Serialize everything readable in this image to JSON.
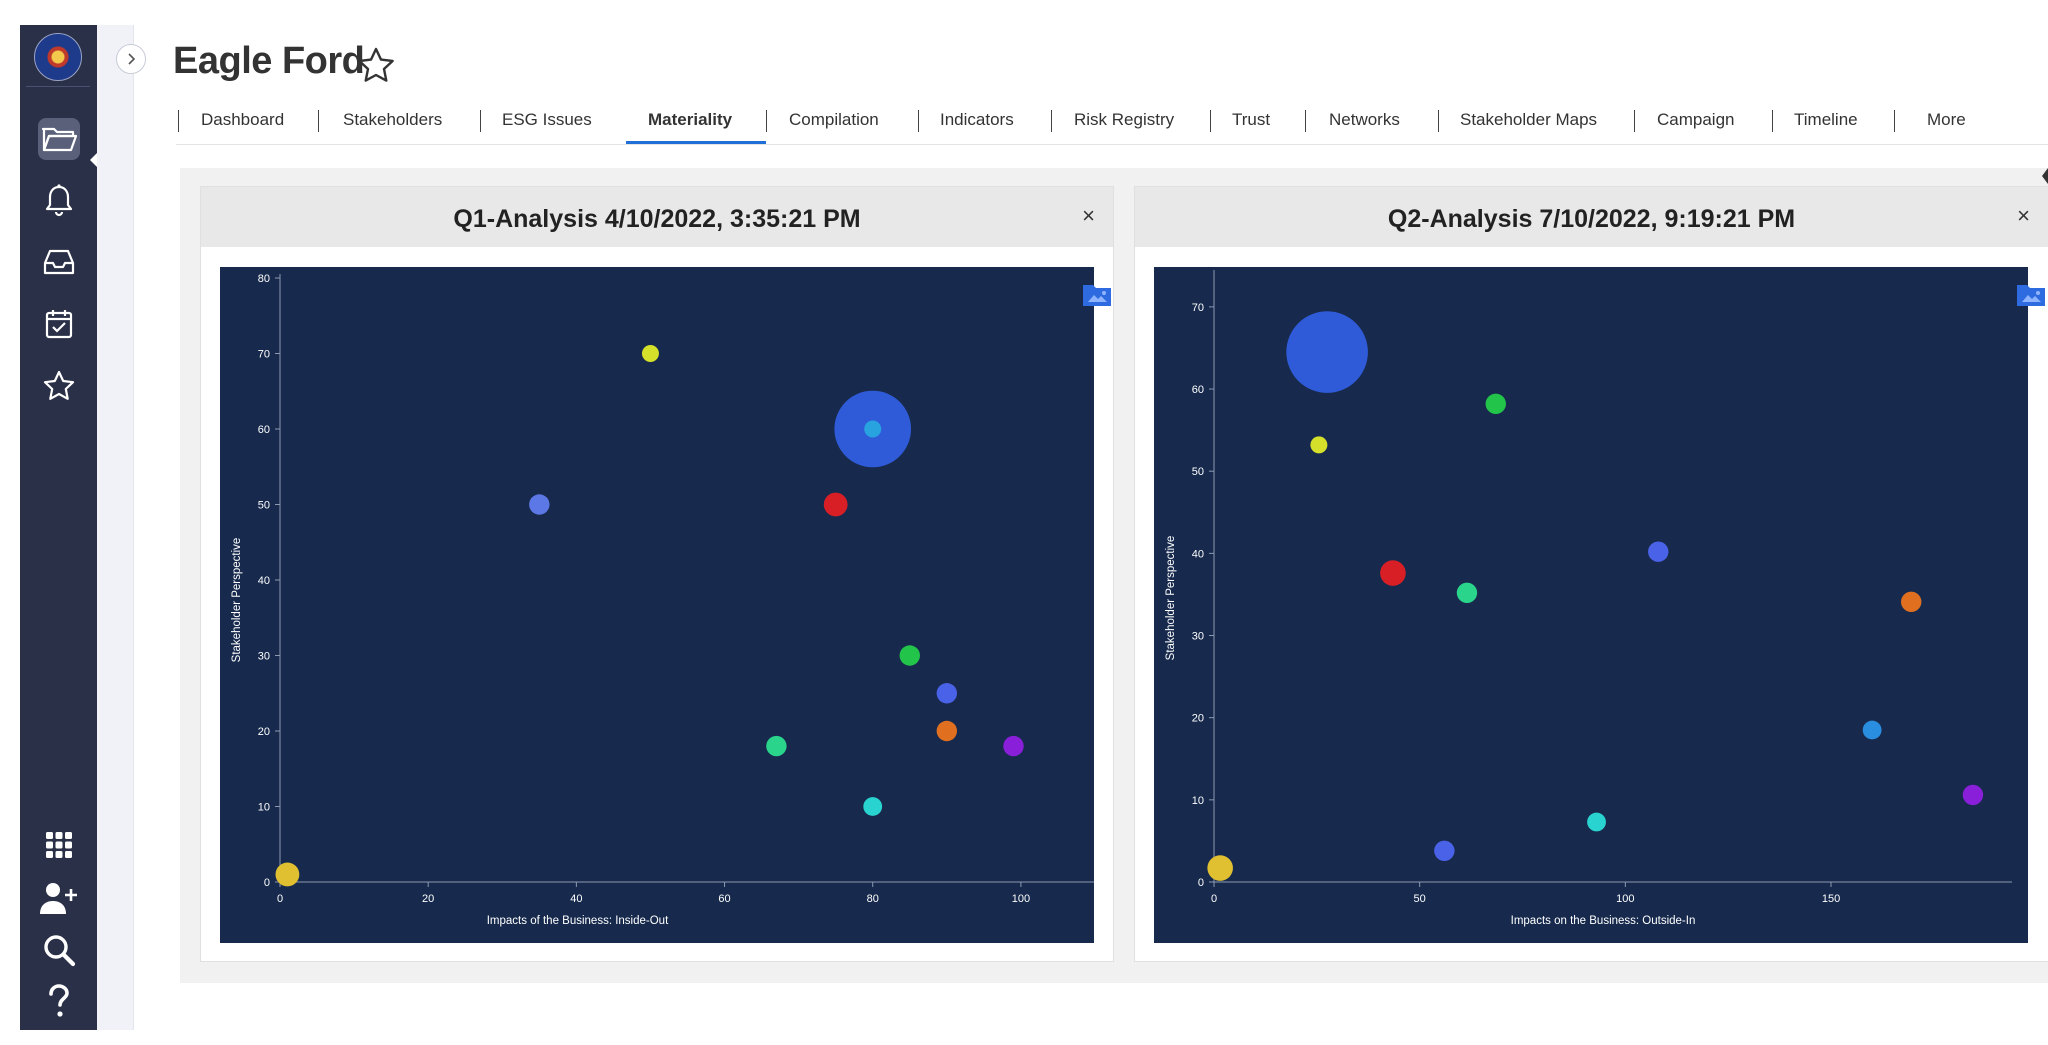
{
  "app": {
    "title": "Eagle Ford"
  },
  "sidebar": {
    "items": [
      {
        "name": "folder-icon",
        "active": true
      },
      {
        "name": "bell-icon"
      },
      {
        "name": "inbox-icon"
      },
      {
        "name": "calendar-check-icon"
      },
      {
        "name": "star-icon"
      },
      {
        "name": "apps-grid-icon"
      },
      {
        "name": "add-user-icon"
      },
      {
        "name": "search-icon"
      },
      {
        "name": "help-icon"
      }
    ]
  },
  "tabs": [
    {
      "label": "Dashboard"
    },
    {
      "label": "Stakeholders"
    },
    {
      "label": "ESG Issues"
    },
    {
      "label": "Materiality",
      "active": true
    },
    {
      "label": "Compilation"
    },
    {
      "label": "Indicators"
    },
    {
      "label": "Risk Registry"
    },
    {
      "label": "Trust"
    },
    {
      "label": "Networks"
    },
    {
      "label": "Stakeholder Maps"
    },
    {
      "label": "Campaign"
    },
    {
      "label": "Timeline"
    },
    {
      "label": "More"
    }
  ],
  "colors": {
    "chart_bg": "#172a4d",
    "axis": "#8c99b0",
    "accent": "#1f6fd6"
  },
  "panels": [
    {
      "title": "Q1-Analysis 4/10/2022, 3:35:21 PM",
      "close": "×"
    },
    {
      "title": "Q2-Analysis 7/10/2022, 9:19:21 PM",
      "close": "×"
    }
  ],
  "chart_data": [
    {
      "type": "scatter",
      "title": "",
      "xlabel": "Impacts of the Business: Inside-Out",
      "ylabel": "Stakeholder Perspective",
      "xlim": [
        0,
        110
      ],
      "ylim": [
        0,
        80
      ],
      "xticks": [
        0,
        20,
        40,
        60,
        80,
        100
      ],
      "yticks": [
        0,
        10,
        20,
        30,
        40,
        50,
        60,
        70,
        80
      ],
      "points": [
        {
          "x": 50,
          "y": 70,
          "color": "#d4e02a",
          "size": 1
        },
        {
          "x": 80,
          "y": 60,
          "color": "#2f5bd8",
          "size": 4.5
        },
        {
          "x": 80,
          "y": 60,
          "color": "#29a3e0",
          "size": 1
        },
        {
          "x": 35,
          "y": 50,
          "color": "#5c78e6",
          "size": 1.2
        },
        {
          "x": 75,
          "y": 50,
          "color": "#d91f26",
          "size": 1.4
        },
        {
          "x": 85,
          "y": 30,
          "color": "#22c44a",
          "size": 1.2
        },
        {
          "x": 90,
          "y": 25,
          "color": "#4a62e8",
          "size": 1.2
        },
        {
          "x": 67,
          "y": 18,
          "color": "#2ad48a",
          "size": 1.2
        },
        {
          "x": 90,
          "y": 20,
          "color": "#e07020",
          "size": 1.2
        },
        {
          "x": 99,
          "y": 18,
          "color": "#8a1fd9",
          "size": 1.2
        },
        {
          "x": 80,
          "y": 10,
          "color": "#29d4d0",
          "size": 1.1
        },
        {
          "x": 1,
          "y": 1,
          "color": "#e0c030",
          "size": 1.4
        }
      ]
    },
    {
      "type": "scatter",
      "title": "",
      "xlabel": "Impacts on the Business: Outside-In",
      "ylabel": "Stakeholder Perspective",
      "xlim": [
        0,
        194
      ],
      "ylim": [
        0,
        74
      ],
      "xticks": [
        0,
        50,
        100,
        150
      ],
      "yticks": [
        0,
        10,
        20,
        30,
        40,
        50,
        60,
        70
      ],
      "points": [
        {
          "x": 27.5,
          "y": 64.5,
          "color": "#2f5bd8",
          "size": 4.8
        },
        {
          "x": 68.5,
          "y": 58.2,
          "color": "#22c44a",
          "size": 1.2
        },
        {
          "x": 25.5,
          "y": 53.2,
          "color": "#d4e02a",
          "size": 1
        },
        {
          "x": 108,
          "y": 40.2,
          "color": "#4a62e8",
          "size": 1.2
        },
        {
          "x": 43.5,
          "y": 37.6,
          "color": "#d91f26",
          "size": 1.5
        },
        {
          "x": 61.5,
          "y": 35.2,
          "color": "#2ad48a",
          "size": 1.2
        },
        {
          "x": 169.5,
          "y": 34.1,
          "color": "#e07020",
          "size": 1.2
        },
        {
          "x": 160,
          "y": 18.5,
          "color": "#2a8ee0",
          "size": 1.1
        },
        {
          "x": 184.5,
          "y": 10.6,
          "color": "#8a1fd9",
          "size": 1.2
        },
        {
          "x": 93,
          "y": 7.3,
          "color": "#29d4d0",
          "size": 1.1
        },
        {
          "x": 56,
          "y": 3.8,
          "color": "#4a62e8",
          "size": 1.2
        },
        {
          "x": 1.5,
          "y": 1.7,
          "color": "#e0c030",
          "size": 1.5
        }
      ]
    }
  ]
}
